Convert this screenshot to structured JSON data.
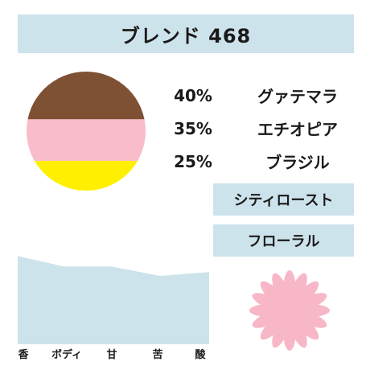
{
  "header": {
    "title": "ブレンド 468"
  },
  "blend": {
    "components": [
      {
        "percent": "40%",
        "origin": "グァテマラ",
        "share": 40,
        "color": "#7f5134"
      },
      {
        "percent": "35%",
        "origin": "エチオピア",
        "share": 35,
        "color": "#f8bccb"
      },
      {
        "percent": "25%",
        "origin": "ブラジル",
        "share": 25,
        "color": "#fef000"
      }
    ]
  },
  "tags": {
    "roast": "シティロースト",
    "flavor": "フローラル"
  },
  "profile": {
    "labels": [
      "香",
      "ボディ",
      "甘",
      "苦",
      "酸"
    ],
    "levels": [
      0.93,
      0.82,
      0.82,
      0.72,
      0.76
    ],
    "fill_color": "#cde3ec"
  },
  "icons": {
    "flavor_icon": "flower-icon",
    "flower_color": "#f7b7c7"
  }
}
